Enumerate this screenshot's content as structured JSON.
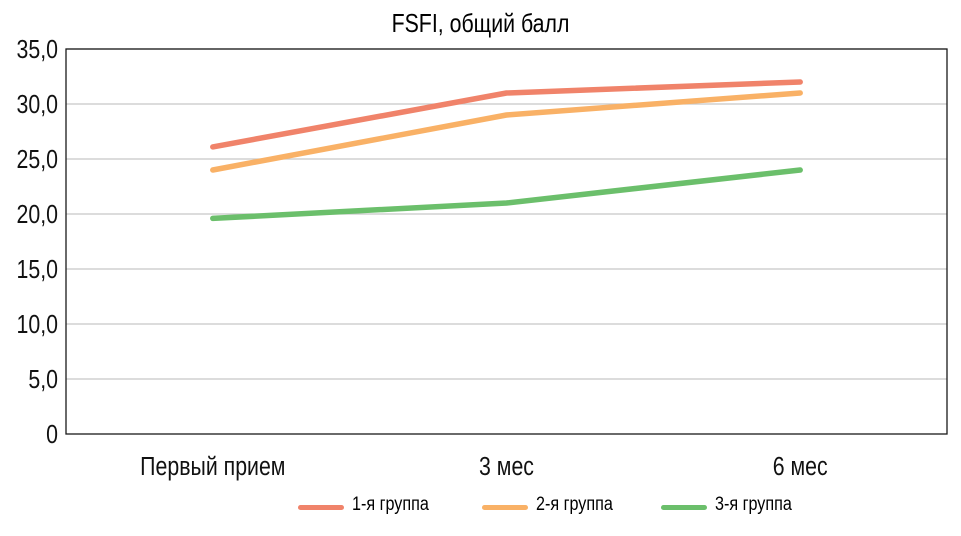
{
  "chart_data": {
    "type": "line",
    "title": "FSFI, общий балл",
    "categories": [
      "Первый прием",
      "3 мес",
      "6 мес"
    ],
    "yticks": [
      "0",
      "5,0",
      "10,0",
      "15,0",
      "20,0",
      "25,0",
      "30,0",
      "35,0"
    ],
    "ylim": [
      0,
      35
    ],
    "grid": true,
    "legend_position": "bottom",
    "series": [
      {
        "name": "1-я группа",
        "color": "#f0836a",
        "values": [
          26.1,
          31.0,
          32.0
        ]
      },
      {
        "name": "2-я группа",
        "color": "#f9b166",
        "values": [
          24.0,
          29.0,
          31.0
        ]
      },
      {
        "name": "3-я группа",
        "color": "#6bbf6b",
        "values": [
          19.6,
          21.0,
          24.0
        ]
      }
    ]
  }
}
